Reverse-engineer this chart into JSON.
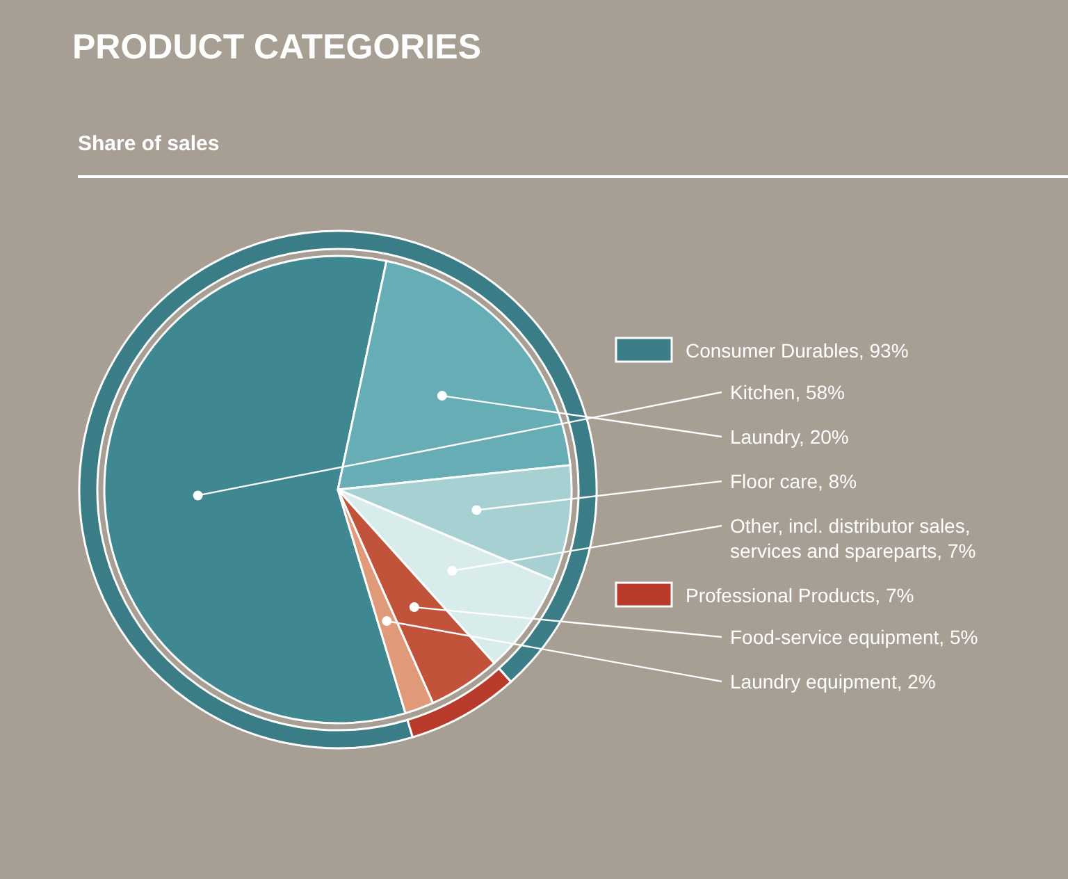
{
  "chart_data": [
    {
      "type": "pie",
      "title": "PRODUCT CATEGORIES",
      "subtitle": "Share of sales",
      "categories": [
        "Kitchen, 58%",
        "Laundry, 20%",
        "Floor care, 8%",
        "Other, incl. distributor sales, services and spareparts, 7%",
        "Food-service equipment, 5%",
        "Laundry equipment, 2%"
      ],
      "values": [
        58,
        20,
        8,
        7,
        5,
        2
      ],
      "colors": [
        "#3f8791",
        "#66adb5",
        "#a7d0d3",
        "#d9ecec",
        "#c1533b",
        "#e09a7a"
      ]
    },
    {
      "type": "donut",
      "categories": [
        "Consumer Durables, 93%",
        "Professional Products, 7%"
      ],
      "values": [
        93,
        7
      ],
      "colors": [
        "#3a7d86",
        "#b83a2a"
      ],
      "legend": "right"
    }
  ]
}
